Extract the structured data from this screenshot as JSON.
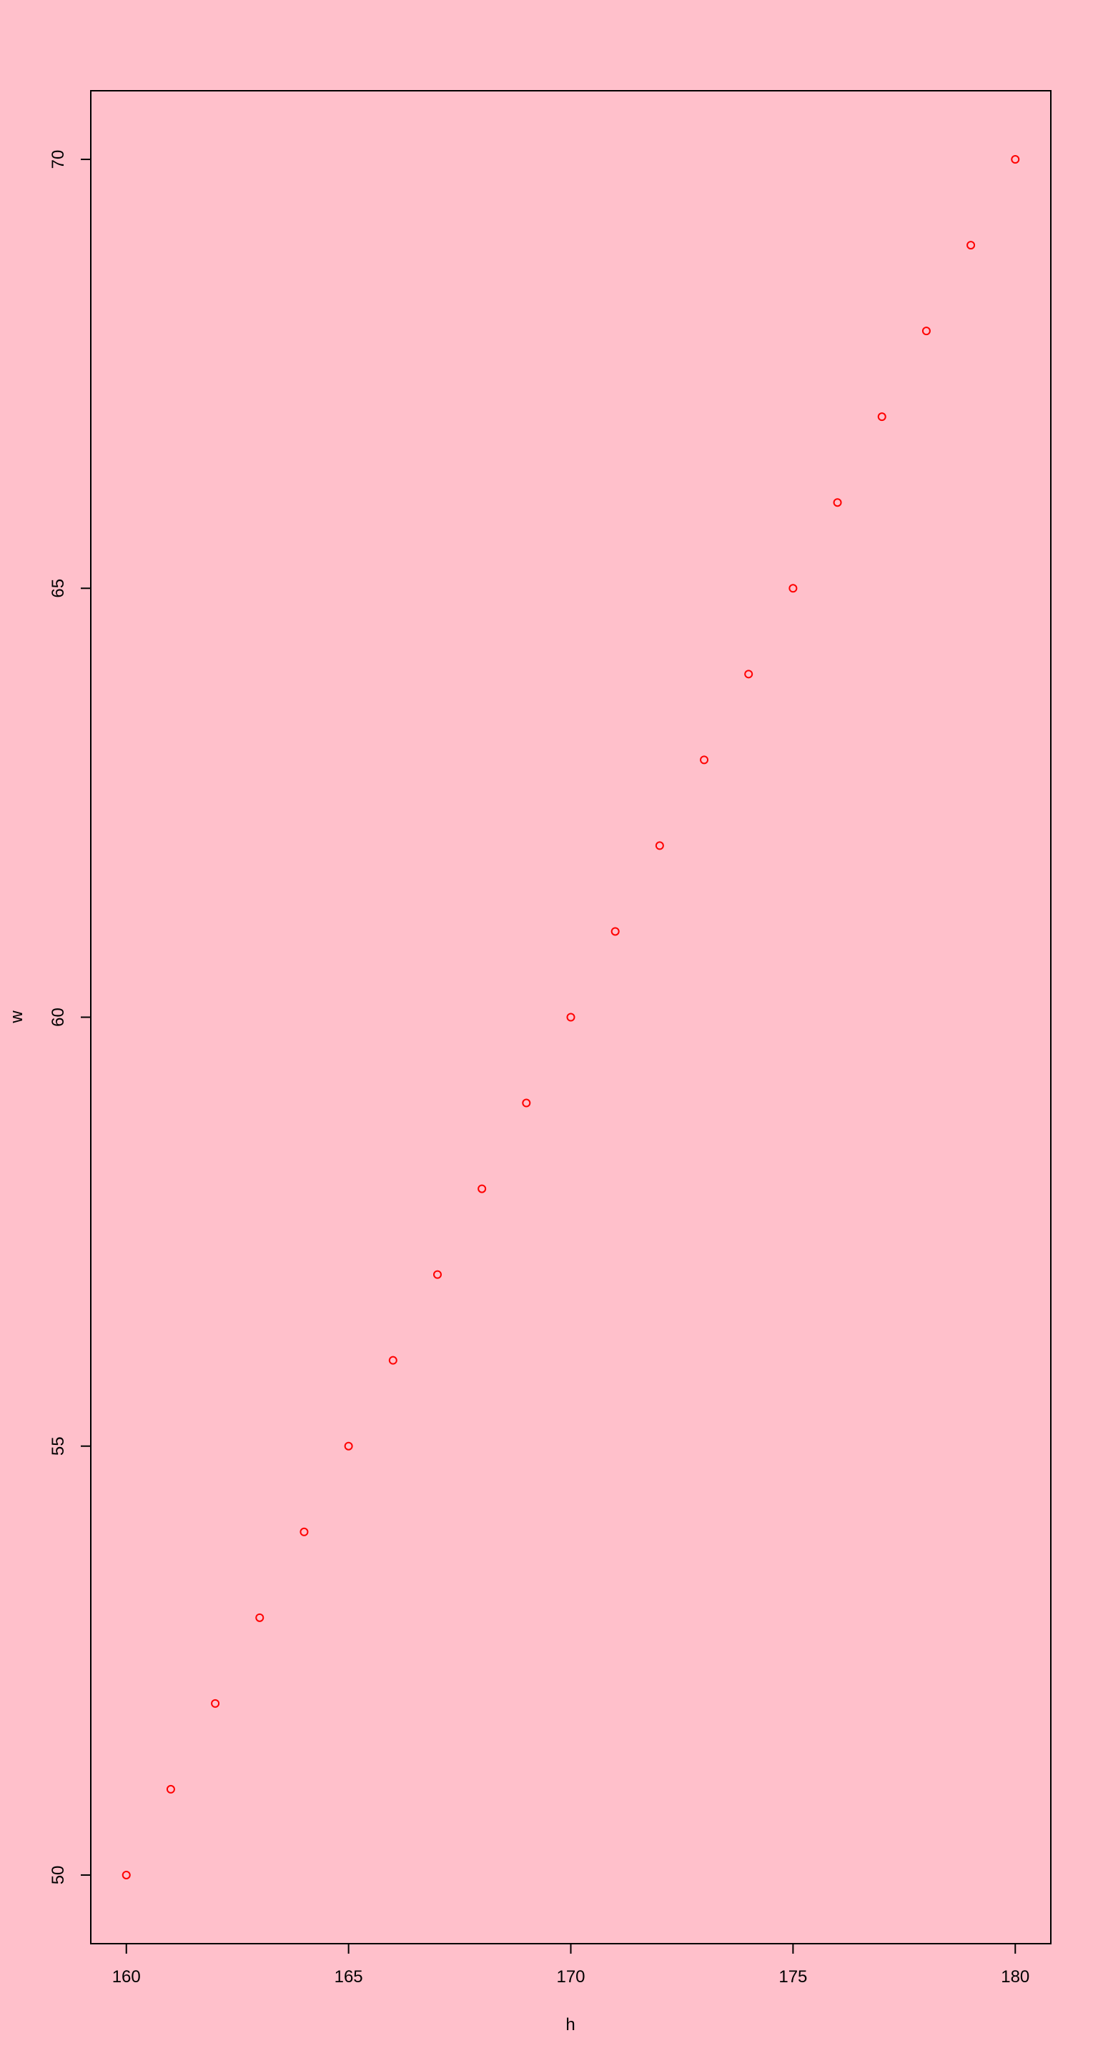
{
  "chart_data": {
    "type": "scatter",
    "title": "",
    "xlabel": "h",
    "ylabel": "w",
    "x": [
      160,
      161,
      162,
      163,
      164,
      165,
      166,
      167,
      168,
      169,
      170,
      171,
      172,
      173,
      174,
      175,
      176,
      177,
      178,
      179,
      180
    ],
    "y": [
      50,
      51,
      52,
      53,
      54,
      55,
      56,
      57,
      58,
      59,
      60,
      61,
      62,
      63,
      64,
      65,
      66,
      67,
      68,
      69,
      70
    ],
    "xlim": [
      159.2,
      180.8
    ],
    "ylim": [
      49.2,
      70.8
    ],
    "xticks": [
      160,
      165,
      170,
      175,
      180
    ],
    "yticks": [
      50,
      55,
      60,
      65,
      70
    ],
    "point_style": "open-circle",
    "point_color": "#ff0000",
    "background_color": "#ffc0cb",
    "grid": false,
    "legend": "none"
  }
}
